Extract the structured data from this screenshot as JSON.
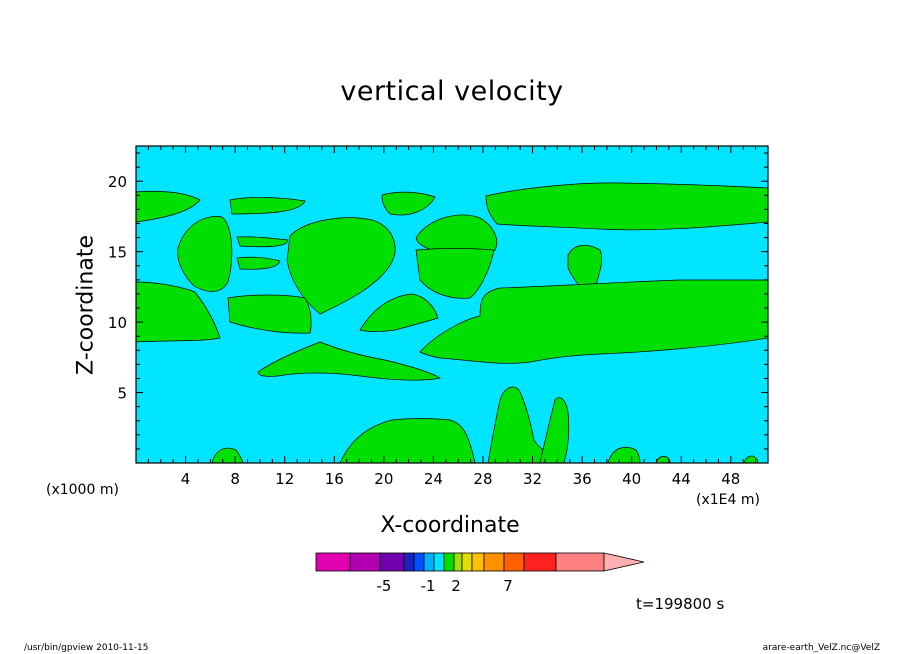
{
  "chart_data": {
    "type": "heatmap",
    "title": "vertical velocity",
    "xlabel": "X-coordinate",
    "ylabel": "Z-coordinate",
    "x_unit": "(x1E4 m)",
    "y_unit": "(x1000 m)",
    "xlim": [
      0,
      51
    ],
    "ylim": [
      0,
      22.5
    ],
    "x_ticks": [
      4,
      8,
      12,
      16,
      20,
      24,
      28,
      32,
      36,
      40,
      44,
      48
    ],
    "y_ticks": [
      5,
      10,
      15,
      20
    ],
    "background_color": "#00e5ff",
    "region_color": "#00e000",
    "colorbar": {
      "colors": [
        "#e000b0",
        "#b000b0",
        "#7000b0",
        "#2020c0",
        "#0050ff",
        "#00b0ff",
        "#00e5ff",
        "#00e000",
        "#a0e000",
        "#e0e000",
        "#ffc000",
        "#ff9000",
        "#ff6000",
        "#ff2020",
        "#ff8080",
        "#ffb0b0"
      ],
      "labels": [
        "-5",
        "-1",
        "2",
        "7"
      ]
    },
    "time_label": "t=199800 s"
  },
  "footer": {
    "left": "/usr/bin/gpview   2010-11-15",
    "right": "arare-earth_VelZ.nc@VelZ"
  }
}
